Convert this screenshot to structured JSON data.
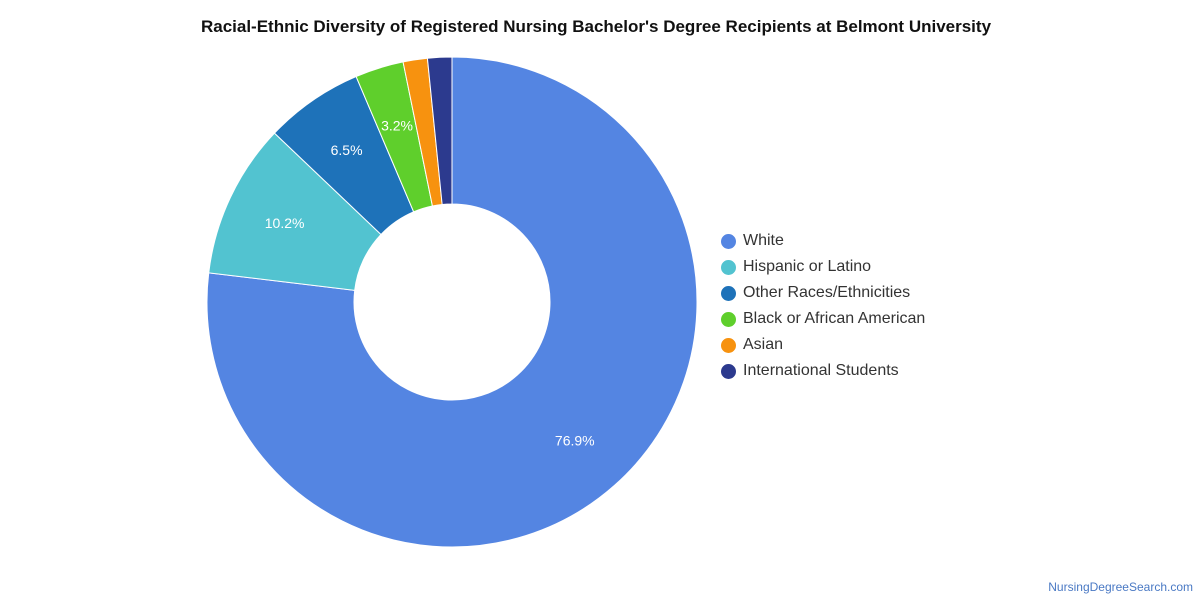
{
  "chart_data": {
    "type": "pie",
    "title": "Racial-Ethnic Diversity of Registered Nursing Bachelor's Degree Recipients at Belmont University",
    "donut": true,
    "legend_position": "right",
    "slices": [
      {
        "name": "White",
        "value": 76.9,
        "label": "76.9%",
        "color": "#5485e2"
      },
      {
        "name": "Hispanic or Latino",
        "value": 10.2,
        "label": "10.2%",
        "color": "#52c3d0"
      },
      {
        "name": "Other Races/Ethnicities",
        "value": 6.5,
        "label": "6.5%",
        "color": "#1e72b9"
      },
      {
        "name": "Black or African American",
        "value": 3.2,
        "label": "3.2%",
        "color": "#5fcf2c"
      },
      {
        "name": "Asian",
        "value": 1.6,
        "label": "",
        "color": "#f7920f"
      },
      {
        "name": "International Students",
        "value": 1.6,
        "label": "",
        "color": "#2c3a8e"
      }
    ]
  },
  "watermark": "NursingDegreeSearch.com"
}
